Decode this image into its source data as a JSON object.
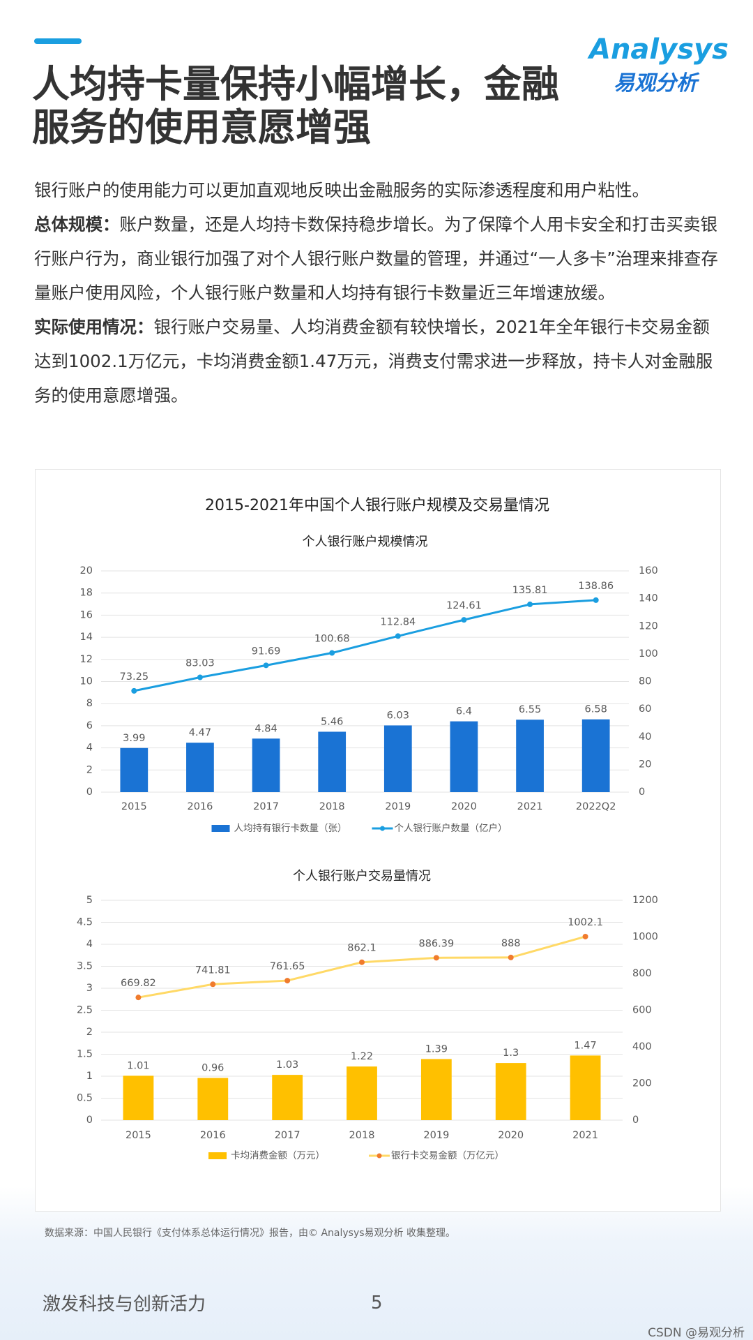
{
  "header": {
    "title_lines": [
      "人均持卡量保持小幅增长，金融",
      "服务的使用意愿增强"
    ],
    "logo": "Analysys",
    "logo_sub": "易观分析"
  },
  "paragraphs": [
    {
      "text": "银行账户的使用能力可以更加直观地反映出金融服务的实际渗透程度和用户粘性。"
    },
    {
      "label": "总体规模：",
      "text": "账户数量，还是人均持卡数保持稳步增长。为了保障个人用卡安全和打击买卖银行账户行为，商业银行加强了对个人银行账户数量的管理，并通过“一人多卡”治理来排查存量账户使用风险，个人银行账户数量和人均持有银行卡数量近三年增速放缓。"
    },
    {
      "label": "实际使用情况：",
      "text": "银行账户交易量、人均消费金额有较快增长，2021年全年银行卡交易金额达到1002.1万亿元，卡均消费金额1.47万元，消费支付需求进一步释放，持卡人对金融服务的使用意愿增强。"
    }
  ],
  "chart_section_title": "2015-2021年中国个人银行账户规模及交易量情况",
  "chart_data": [
    {
      "type": "combo",
      "title": "个人银行账户规模情况",
      "categories": [
        "2015",
        "2016",
        "2017",
        "2018",
        "2019",
        "2020",
        "2021",
        "2022Q2"
      ],
      "series": [
        {
          "name": "人均持有银行卡数量（张）",
          "color": "#1a73d4",
          "values": [
            3.99,
            4.47,
            4.84,
            5.46,
            6.03,
            6.4,
            6.55,
            6.58
          ]
        },
        {
          "name": "个人银行账户数量（亿户）",
          "color": "#1a9ee0",
          "marker_color": "#1a9ee0",
          "axis": "y2",
          "values": [
            73.25,
            83.03,
            91.69,
            100.68,
            112.84,
            124.61,
            135.81,
            138.86
          ]
        }
      ],
      "ylim": [
        0,
        20
      ],
      "yticks": [
        0,
        2,
        4,
        6,
        8,
        10,
        12,
        14,
        16,
        18,
        20
      ],
      "y2lim": [
        0,
        160
      ],
      "y2ticks": [
        0,
        20,
        40,
        60,
        80,
        100,
        120,
        140,
        160
      ],
      "grid": true
    },
    {
      "type": "combo",
      "title": "个人银行账户交易量情况",
      "categories": [
        "2015",
        "2016",
        "2017",
        "2018",
        "2019",
        "2020",
        "2021"
      ],
      "series": [
        {
          "name": "卡均消费金额（万元）",
          "color": "#ffc000",
          "values": [
            1.01,
            0.96,
            1.03,
            1.22,
            1.39,
            1.3,
            1.47
          ]
        },
        {
          "name": "银行卡交易金额（万亿元）",
          "color": "#ffd966",
          "marker_color": "#f07b2d",
          "axis": "y2",
          "values": [
            669.82,
            741.81,
            761.65,
            862.1,
            886.39,
            888,
            1002.1
          ]
        }
      ],
      "ylim": [
        0,
        5
      ],
      "yticks": [
        0,
        0.5,
        1,
        1.5,
        2,
        2.5,
        3,
        3.5,
        4,
        4.5,
        5
      ],
      "y2lim": [
        0,
        1200
      ],
      "y2ticks": [
        0,
        200,
        400,
        600,
        800,
        1000,
        1200
      ],
      "grid": true
    }
  ],
  "source": "数据来源：中国人民银行《支付体系总体运行情况》报告，由© Analysys易观分析 收集整理。",
  "footer": {
    "slogan": "激发科技与创新活力",
    "page": "5",
    "watermark": "CSDN @易观分析"
  }
}
